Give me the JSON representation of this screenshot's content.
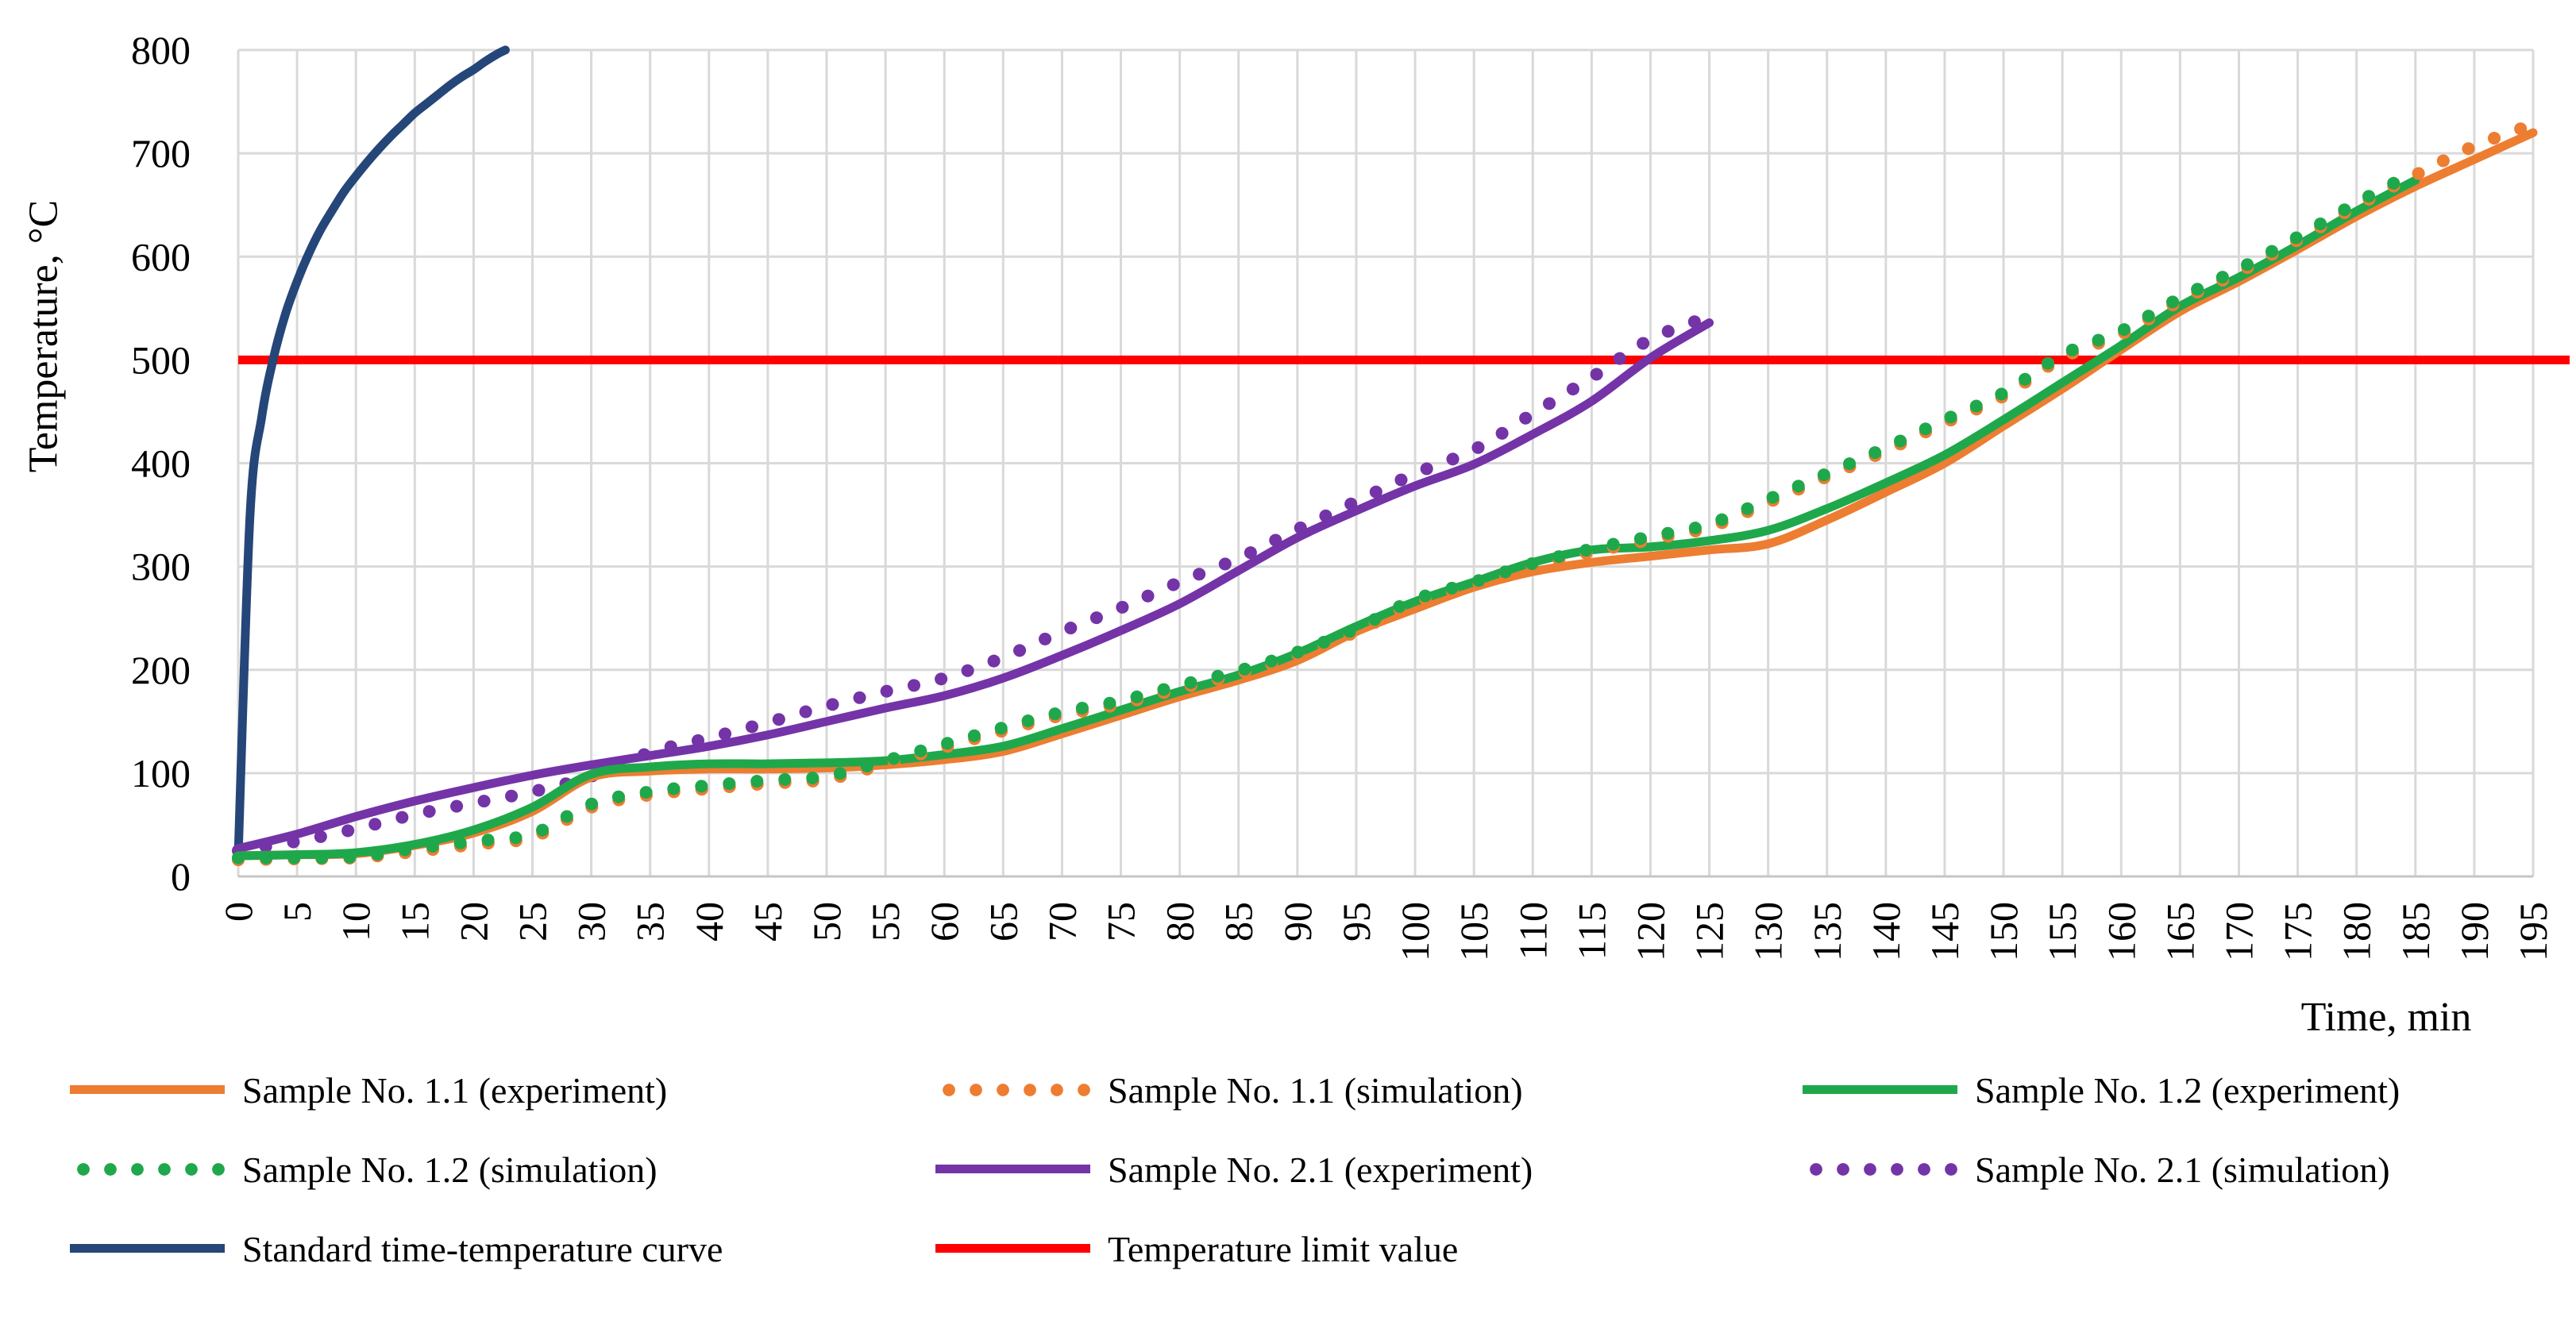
{
  "axes": {
    "x_label": "Time, min",
    "y_label": "Temperature, °C",
    "x_ticks": [
      "0",
      "5",
      "10",
      "15",
      "20",
      "25",
      "30",
      "35",
      "40",
      "45",
      "50",
      "55",
      "60",
      "65",
      "70",
      "75",
      "80",
      "85",
      "90",
      "95",
      "100",
      "105",
      "110",
      "115",
      "120",
      "125",
      "130",
      "135",
      "140",
      "145",
      "150",
      "155",
      "160",
      "165",
      "170",
      "175",
      "180",
      "185",
      "190",
      "195"
    ],
    "y_ticks": [
      "0",
      "100",
      "200",
      "300",
      "400",
      "500",
      "600",
      "700",
      "800"
    ]
  },
  "colors": {
    "orange": "#ED7D31",
    "green": "#1FA84B",
    "purple": "#7434A8",
    "navy": "#254679",
    "red": "#FF0000",
    "gridline": "#D9D9D9",
    "axis_line": "#C6C6C6",
    "text": "#000000"
  },
  "chart_data": {
    "type": "line",
    "title": "",
    "xlabel": "Time, min",
    "ylabel": "Temperature, °C",
    "xlim": [
      0,
      195
    ],
    "ylim": [
      0,
      800
    ],
    "x_tick_step": 5,
    "grid": true,
    "legend_position": "bottom",
    "categories": [
      0,
      5,
      10,
      15,
      20,
      25,
      30,
      35,
      40,
      45,
      50,
      55,
      60,
      65,
      70,
      75,
      80,
      85,
      90,
      95,
      100,
      105,
      110,
      115,
      120,
      125,
      130,
      135,
      140,
      145,
      150,
      155,
      160,
      165,
      170,
      175,
      180,
      185,
      190,
      195
    ],
    "series": [
      {
        "name": "Sample No. 1.1 (experiment)",
        "style": "solid",
        "color": "#ED7D31",
        "values": [
          20,
          21,
          22,
          30,
          42,
          63,
          96,
          102,
          104,
          104,
          105,
          108,
          113,
          121,
          138,
          156,
          174,
          190,
          209,
          237,
          259,
          280,
          295,
          304,
          310,
          316,
          322,
          345,
          372,
          400,
          436,
          472,
          510,
          547,
          576,
          607,
          639,
          668,
          694,
          720
        ]
      },
      {
        "name": "Sample No. 1.1 (simulation)",
        "style": "dotted",
        "color": "#ED7D31",
        "values": [
          16,
          17,
          18,
          24,
          31,
          38,
          67,
          79,
          85,
          90,
          94,
          109,
          125,
          141,
          156,
          167,
          182,
          196,
          214,
          237,
          265,
          282,
          300,
          314,
          326,
          338,
          362,
          387,
          412,
          439,
          465,
          502,
          525,
          557,
          585,
          616,
          649,
          679,
          707,
          728
        ]
      },
      {
        "name": "Sample No. 1.2 (experiment)",
        "style": "solid",
        "color": "#1FA84B",
        "values": [
          20,
          21,
          23,
          31,
          45,
          67,
          99,
          106,
          109,
          109,
          110,
          112,
          118,
          126,
          143,
          161,
          179,
          195,
          216,
          242,
          266,
          285,
          304,
          316,
          319,
          325,
          335,
          356,
          381,
          408,
          442,
          478,
          514,
          552,
          580,
          611,
          644,
          674,
          null,
          null
        ]
      },
      {
        "name": "Sample No. 1.2 (simulation)",
        "style": "dotted",
        "color": "#1FA84B",
        "values": [
          18,
          18,
          19,
          27,
          34,
          41,
          70,
          82,
          88,
          93,
          97,
          112,
          128,
          144,
          159,
          170,
          185,
          199,
          217,
          240,
          268,
          285,
          303,
          317,
          329,
          341,
          365,
          390,
          415,
          442,
          468,
          505,
          528,
          560,
          588,
          619,
          652,
          682,
          null,
          null
        ]
      },
      {
        "name": "Sample No. 2.1 (experiment)",
        "style": "solid",
        "color": "#7434A8",
        "values": [
          27,
          41,
          58,
          73,
          86,
          98,
          108,
          117,
          126,
          137,
          150,
          163,
          175,
          192,
          214,
          238,
          264,
          296,
          328,
          354,
          378,
          399,
          428,
          460,
          502,
          536,
          null,
          null,
          null,
          null,
          null,
          null,
          null,
          null,
          null,
          null,
          null,
          null,
          null,
          null
        ]
      },
      {
        "name": "Sample No. 2.1 (simulation)",
        "style": "dotted",
        "color": "#7434A8",
        "values": [
          25,
          34,
          46,
          60,
          71,
          82,
          97,
          120,
          134,
          149,
          165,
          179,
          192,
          212,
          237,
          260,
          285,
          308,
          336,
          363,
          390,
          413,
          448,
          483,
          520,
          542,
          null,
          null,
          null,
          null,
          null,
          null,
          null,
          null,
          null,
          null,
          null,
          null,
          null,
          null
        ]
      },
      {
        "name": "Standard time-temperature curve",
        "style": "solid",
        "color": "#254679",
        "x": [
          0,
          1,
          2,
          3,
          4,
          5,
          6,
          7,
          8,
          9,
          10,
          11,
          12,
          13,
          14,
          15,
          16,
          17,
          18,
          19,
          20,
          21,
          22,
          22.7
        ],
        "values": [
          20,
          349,
          445,
          502,
          544,
          576,
          603,
          626,
          645,
          663,
          678,
          692,
          705,
          717,
          728,
          739,
          748,
          757,
          766,
          774,
          781,
          789,
          796,
          800
        ]
      },
      {
        "name": "Temperature limit value",
        "style": "solid",
        "color": "#FF0000",
        "constant": 500
      }
    ]
  },
  "legend": {
    "items": [
      {
        "label": "Sample No. 1.1 (experiment)",
        "swatch": "line",
        "color": "#ED7D31"
      },
      {
        "label": "Sample No. 1.1 (simulation)",
        "swatch": "dots",
        "color": "#ED7D31"
      },
      {
        "label": "Sample No. 1.2 (experiment)",
        "swatch": "line",
        "color": "#1FA84B"
      },
      {
        "label": "Sample No. 1.2 (simulation)",
        "swatch": "dots",
        "color": "#1FA84B"
      },
      {
        "label": "Sample No. 2.1 (experiment)",
        "swatch": "line",
        "color": "#7434A8"
      },
      {
        "label": "Sample No. 2.1 (simulation)",
        "swatch": "dots",
        "color": "#7434A8"
      },
      {
        "label": "Standard time-temperature curve",
        "swatch": "line",
        "color": "#254679"
      },
      {
        "label": "Temperature limit value",
        "swatch": "line",
        "color": "#FF0000"
      }
    ]
  }
}
